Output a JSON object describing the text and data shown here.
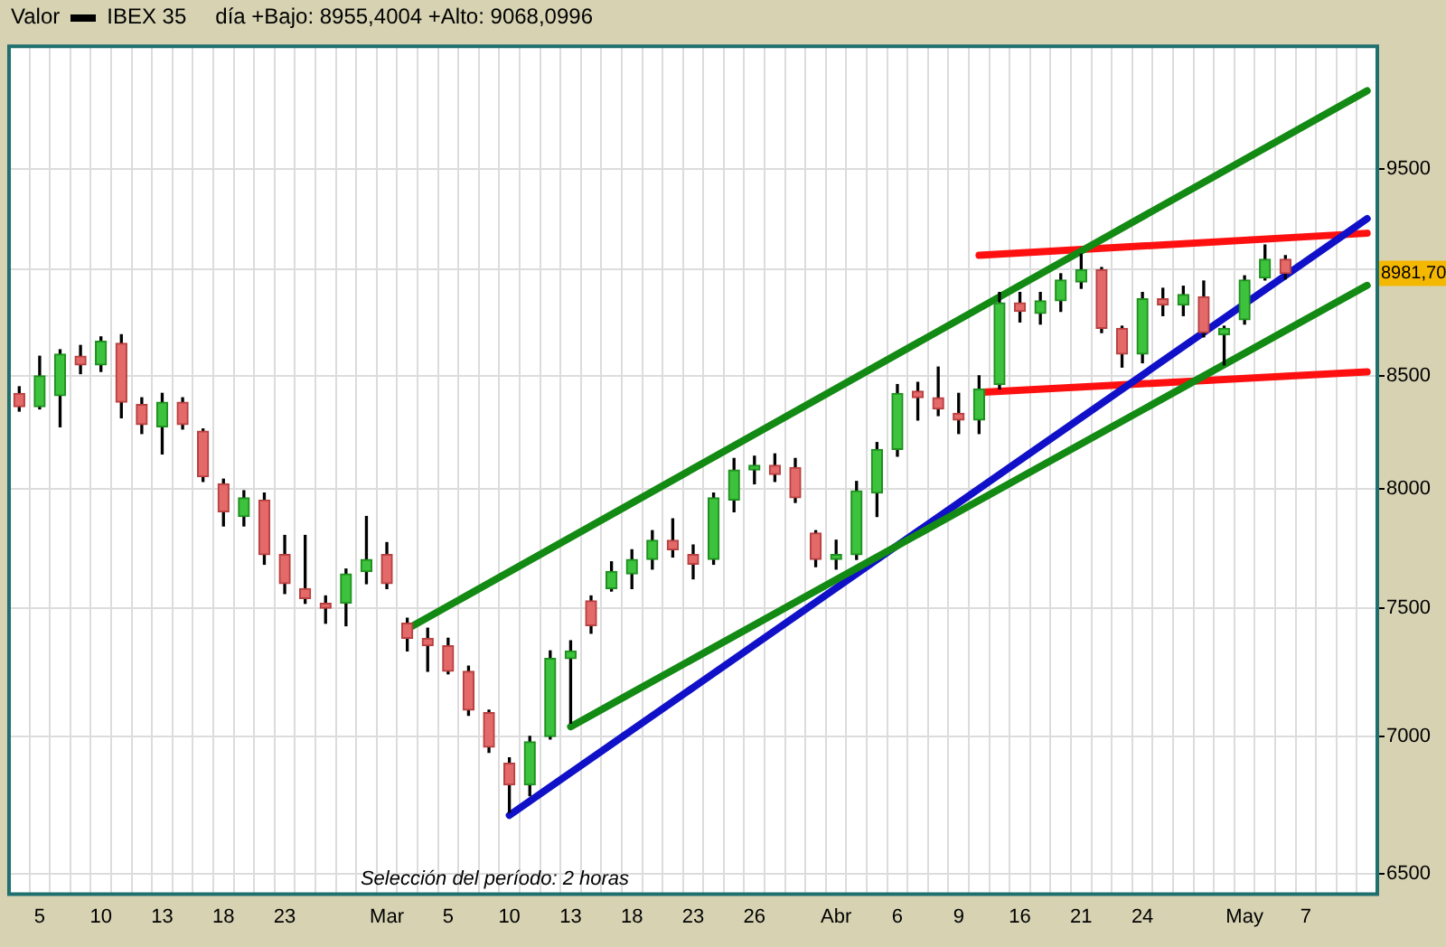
{
  "chart_data": {
    "type": "candlestick",
    "title": "Valor",
    "subtitle": "día +Bajo: 8955,4004 +Alto: 9068,0996",
    "categories": [
      null,
      "5",
      null,
      null,
      "10",
      null,
      null,
      "13",
      null,
      null,
      "18",
      null,
      null,
      "23",
      null,
      null,
      null,
      null,
      "Mar",
      null,
      null,
      "5",
      null,
      null,
      "10",
      null,
      null,
      "13",
      null,
      null,
      "18",
      null,
      null,
      "23",
      null,
      null,
      "26",
      null,
      null,
      null,
      "Abr",
      null,
      null,
      "6",
      null,
      null,
      "9",
      null,
      null,
      "16",
      null,
      null,
      "21",
      null,
      null,
      "24",
      null,
      null,
      null,
      null,
      "May",
      null,
      null,
      "7",
      null,
      null,
      null
    ],
    "series": [
      {
        "name": "IBEX 35",
        "type": "candlestick",
        "ohlc": [
          [
            8420,
            8450,
            8340,
            8360
          ],
          [
            8360,
            8590,
            8350,
            8500
          ],
          [
            8410,
            8620,
            8270,
            8600
          ],
          [
            8590,
            8640,
            8510,
            8550
          ],
          [
            8550,
            8680,
            8520,
            8660
          ],
          [
            8650,
            8690,
            8310,
            8380
          ],
          [
            8370,
            8400,
            8240,
            8280
          ],
          [
            8270,
            8420,
            8150,
            8380
          ],
          [
            8380,
            8400,
            8260,
            8280
          ],
          [
            8250,
            8260,
            8030,
            8050
          ],
          [
            8020,
            8040,
            7840,
            7900
          ],
          [
            7880,
            7990,
            7840,
            7960
          ],
          [
            7950,
            7980,
            7680,
            7720
          ],
          [
            7720,
            7800,
            7560,
            7600
          ],
          [
            7580,
            7800,
            7520,
            7540
          ],
          [
            7520,
            7550,
            7440,
            7500
          ],
          [
            7520,
            7660,
            7430,
            7640
          ],
          [
            7650,
            7880,
            7600,
            7700
          ],
          [
            7720,
            7770,
            7580,
            7600
          ],
          [
            7440,
            7460,
            7330,
            7380
          ],
          [
            7380,
            7420,
            7250,
            7350
          ],
          [
            7350,
            7380,
            7240,
            7250
          ],
          [
            7250,
            7270,
            7080,
            7100
          ],
          [
            7090,
            7100,
            6940,
            6960
          ],
          [
            6900,
            6920,
            6720,
            6820
          ],
          [
            6820,
            7000,
            6780,
            6980
          ],
          [
            7000,
            7330,
            6990,
            7300
          ],
          [
            7300,
            7370,
            7050,
            7330
          ],
          [
            7530,
            7550,
            7400,
            7430
          ],
          [
            7580,
            7690,
            7570,
            7650
          ],
          [
            7640,
            7740,
            7580,
            7700
          ],
          [
            7700,
            7820,
            7660,
            7780
          ],
          [
            7780,
            7870,
            7710,
            7740
          ],
          [
            7720,
            7760,
            7620,
            7680
          ],
          [
            7700,
            7980,
            7680,
            7960
          ],
          [
            7950,
            8130,
            7900,
            8080
          ],
          [
            8080,
            8140,
            8020,
            8100
          ],
          [
            8100,
            8150,
            8030,
            8060
          ],
          [
            8090,
            8130,
            7940,
            7960
          ],
          [
            7810,
            7820,
            7670,
            7700
          ],
          [
            7700,
            7780,
            7660,
            7720
          ],
          [
            7720,
            8030,
            7700,
            7990
          ],
          [
            7980,
            8200,
            7880,
            8170
          ],
          [
            8170,
            8460,
            8140,
            8420
          ],
          [
            8430,
            8470,
            8300,
            8400
          ],
          [
            8400,
            8540,
            8320,
            8350
          ],
          [
            8330,
            8420,
            8240,
            8300
          ],
          [
            8300,
            8500,
            8240,
            8440
          ],
          [
            8460,
            8890,
            8440,
            8840
          ],
          [
            8840,
            8890,
            8750,
            8800
          ],
          [
            8790,
            8890,
            8740,
            8850
          ],
          [
            8850,
            8980,
            8800,
            8950
          ],
          [
            8940,
            9075,
            8910,
            9000
          ],
          [
            9000,
            9010,
            8700,
            8720
          ],
          [
            8720,
            8730,
            8540,
            8600
          ],
          [
            8600,
            8890,
            8560,
            8860
          ],
          [
            8860,
            8910,
            8780,
            8830
          ],
          [
            8830,
            8920,
            8780,
            8880
          ],
          [
            8870,
            8945,
            8680,
            8700
          ],
          [
            8690,
            8730,
            8550,
            8720
          ],
          [
            8760,
            8970,
            8740,
            8950
          ],
          [
            8960,
            9120,
            8950,
            9050
          ],
          [
            9050,
            9068.0996,
            8955.4004,
            8981.7
          ],
          null,
          null,
          null,
          null
        ]
      },
      {
        "type": "line",
        "color": "#138a13",
        "values": [
          null,
          null,
          null,
          null,
          null,
          null,
          null,
          null,
          null,
          null,
          null,
          null,
          null,
          null,
          null,
          null,
          null,
          null,
          null,
          7417,
          null,
          null,
          null,
          null,
          null,
          null,
          null,
          null,
          null,
          null,
          null,
          null,
          null,
          null,
          null,
          null,
          null,
          null,
          null,
          null,
          null,
          null,
          null,
          null,
          null,
          null,
          null,
          null,
          null,
          null,
          null,
          null,
          null,
          null,
          null,
          null,
          null,
          null,
          null,
          null,
          null,
          null,
          null,
          null,
          null,
          null,
          9910
        ]
      },
      {
        "type": "line",
        "color": "#138a13",
        "values": [
          null,
          null,
          null,
          null,
          null,
          null,
          null,
          null,
          null,
          null,
          null,
          null,
          null,
          null,
          null,
          null,
          null,
          null,
          null,
          null,
          null,
          null,
          null,
          null,
          null,
          null,
          null,
          7037,
          null,
          null,
          null,
          null,
          null,
          null,
          null,
          null,
          null,
          null,
          null,
          null,
          null,
          null,
          null,
          null,
          null,
          null,
          null,
          null,
          null,
          null,
          null,
          null,
          null,
          null,
          null,
          null,
          null,
          null,
          null,
          null,
          null,
          null,
          null,
          null,
          null,
          null,
          8924
        ]
      },
      {
        "type": "line",
        "color": "#1010c8",
        "values": [
          null,
          null,
          null,
          null,
          null,
          null,
          null,
          null,
          null,
          null,
          null,
          null,
          null,
          null,
          null,
          null,
          null,
          null,
          null,
          null,
          null,
          null,
          null,
          null,
          6709,
          null,
          null,
          null,
          null,
          null,
          null,
          null,
          null,
          null,
          null,
          null,
          null,
          null,
          null,
          null,
          null,
          null,
          null,
          null,
          null,
          null,
          null,
          null,
          null,
          null,
          null,
          null,
          null,
          null,
          null,
          null,
          null,
          null,
          null,
          null,
          null,
          null,
          null,
          null,
          null,
          null,
          9250
        ]
      },
      {
        "type": "line",
        "color": "#ff1010",
        "values": [
          null,
          null,
          null,
          null,
          null,
          null,
          null,
          null,
          null,
          null,
          null,
          null,
          null,
          null,
          null,
          null,
          null,
          null,
          null,
          null,
          null,
          null,
          null,
          null,
          null,
          null,
          null,
          null,
          null,
          null,
          null,
          null,
          null,
          null,
          null,
          null,
          null,
          null,
          null,
          null,
          null,
          null,
          null,
          null,
          null,
          null,
          null,
          9070,
          null,
          null,
          null,
          null,
          null,
          null,
          null,
          null,
          null,
          null,
          null,
          null,
          null,
          null,
          null,
          null,
          null,
          null,
          9178
        ]
      },
      {
        "type": "line",
        "color": "#ff1010",
        "values": [
          null,
          null,
          null,
          null,
          null,
          null,
          null,
          null,
          null,
          null,
          null,
          null,
          null,
          null,
          null,
          null,
          null,
          null,
          null,
          null,
          null,
          null,
          null,
          null,
          null,
          null,
          null,
          null,
          null,
          null,
          null,
          null,
          null,
          null,
          null,
          null,
          null,
          null,
          null,
          null,
          null,
          null,
          null,
          null,
          null,
          null,
          null,
          8424,
          null,
          null,
          null,
          null,
          null,
          null,
          null,
          null,
          null,
          null,
          null,
          null,
          null,
          null,
          null,
          null,
          null,
          null,
          8518
        ]
      }
    ],
    "log": true,
    "ylim": [
      6430,
      10150
    ],
    "yticks": [
      6500,
      7000,
      7500,
      8000,
      8500,
      {
        "value": 9000,
        "label": null
      },
      9500
    ],
    "grid": true,
    "legend": "top left",
    "marker": "none",
    "line_style": "solid",
    "annotations": [
      {
        "text": "8981,70",
        "y": 8981.7
      },
      "Selección del período: 2 horas"
    ]
  }
}
